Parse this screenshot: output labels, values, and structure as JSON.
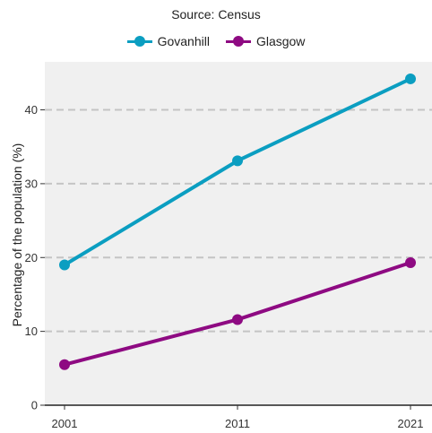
{
  "chart_data": {
    "type": "line",
    "subtitle": "Source: Census",
    "ylabel": "Percentage of the population (%)",
    "xlabel": "",
    "x": [
      2001,
      2011,
      2021
    ],
    "x_tick_labels": [
      "2001",
      "2011",
      "2021"
    ],
    "ylim": [
      0,
      46.5
    ],
    "y_ticks": [
      0,
      10,
      20,
      30,
      40
    ],
    "grid": "horizontal dashed",
    "legend_position": "top",
    "series": [
      {
        "name": "Govanhill",
        "color": "#0b9ec1",
        "values": [
          19.0,
          33.1,
          44.2
        ]
      },
      {
        "name": "Glasgow",
        "color": "#8e0a82",
        "values": [
          5.5,
          11.6,
          19.3
        ]
      }
    ]
  }
}
